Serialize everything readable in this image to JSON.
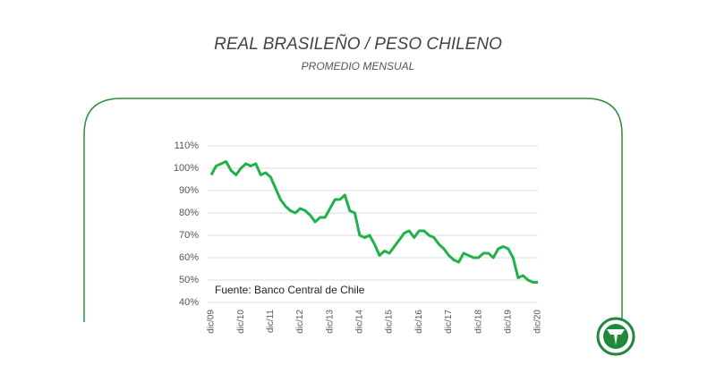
{
  "chart_data": {
    "type": "line",
    "title": "REAL BRASILEÑO / PESO CHILENO",
    "subtitle": "PROMEDIO MENSUAL",
    "annotation": "Fuente: Banco Central de Chile",
    "categories": [
      "dic/09",
      null,
      null,
      null,
      null,
      null,
      "dic/10",
      null,
      null,
      null,
      null,
      null,
      "dic/11",
      null,
      null,
      null,
      null,
      null,
      "dic/12",
      null,
      null,
      null,
      null,
      null,
      "dic/13",
      null,
      null,
      null,
      null,
      null,
      "dic/14",
      null,
      null,
      null,
      null,
      null,
      "dic/15",
      null,
      null,
      null,
      null,
      null,
      "dic/16",
      null,
      null,
      null,
      null,
      null,
      "dic/17",
      null,
      null,
      null,
      null,
      null,
      "dic/18",
      null,
      null,
      null,
      null,
      null,
      "dic/19",
      null,
      null,
      null,
      null,
      null,
      "dic/20"
    ],
    "series": [
      {
        "color": "#1fb24a",
        "values": [
          97,
          101,
          102,
          103,
          99,
          97,
          100,
          102,
          101,
          102,
          97,
          98,
          96,
          91,
          86,
          83,
          81,
          80,
          82,
          81,
          79,
          76,
          78,
          78,
          82,
          86,
          86,
          88,
          81,
          80,
          70,
          69,
          70,
          66,
          61,
          63,
          62,
          65,
          68,
          71,
          72,
          69,
          72,
          72,
          70,
          69,
          66,
          64,
          61,
          59,
          58,
          62,
          61,
          60,
          60,
          62,
          62,
          60,
          64,
          65,
          64,
          60,
          51,
          52,
          50,
          49,
          49
        ]
      }
    ],
    "ylim": [
      40,
      110
    ],
    "yticks": [
      {
        "value": 40,
        "label": "40%"
      },
      {
        "value": 50,
        "label": "50%"
      },
      {
        "value": 60,
        "label": "60%"
      },
      {
        "value": 70,
        "label": "70%"
      },
      {
        "value": 80,
        "label": "80%"
      },
      {
        "value": 90,
        "label": "90%"
      },
      {
        "value": 100,
        "label": "100%"
      },
      {
        "value": 110,
        "label": "110%"
      }
    ],
    "grid": true
  }
}
